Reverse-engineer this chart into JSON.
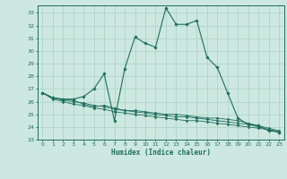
{
  "xlabel": "Humidex (Indice chaleur)",
  "bg_color": "#cde8e0",
  "grid_color": "#b0d4c8",
  "line_color": "#1e6e5e",
  "xlim": [
    -0.5,
    23.5
  ],
  "ylim": [
    23,
    33.6
  ],
  "yticks": [
    23,
    24,
    25,
    26,
    27,
    28,
    29,
    30,
    31,
    32,
    33
  ],
  "xticks": [
    0,
    1,
    2,
    3,
    4,
    5,
    6,
    7,
    8,
    9,
    10,
    11,
    12,
    13,
    14,
    15,
    16,
    17,
    18,
    19,
    20,
    21,
    22,
    23
  ],
  "line1_x": [
    0,
    1,
    2,
    3,
    4,
    5,
    6,
    7,
    8,
    9,
    10,
    11,
    12,
    13,
    14,
    15,
    16,
    17,
    18,
    19,
    20,
    21,
    22,
    23
  ],
  "line1_y": [
    26.7,
    26.3,
    26.2,
    26.2,
    26.4,
    27.0,
    28.2,
    24.5,
    28.6,
    31.1,
    30.6,
    30.3,
    33.4,
    32.1,
    32.1,
    32.4,
    29.5,
    28.7,
    26.7,
    24.7,
    24.2,
    24.1,
    23.7,
    23.6
  ],
  "line2_x": [
    0,
    1,
    2,
    3,
    4,
    5,
    6,
    7,
    8,
    9,
    10,
    11,
    12,
    13,
    14,
    15,
    16,
    17,
    18,
    19,
    20,
    21,
    22,
    23
  ],
  "line2_y": [
    26.7,
    26.3,
    26.2,
    26.1,
    25.8,
    25.6,
    25.7,
    25.5,
    25.3,
    25.3,
    25.2,
    25.1,
    25.0,
    25.0,
    24.9,
    24.8,
    24.7,
    24.7,
    24.6,
    24.5,
    24.3,
    24.1,
    23.9,
    23.7
  ],
  "line3_x": [
    0,
    1,
    2,
    3,
    4,
    5,
    6,
    7,
    8,
    9,
    10,
    11,
    12,
    13,
    14,
    15,
    16,
    17,
    18,
    19,
    20,
    21,
    22,
    23
  ],
  "line3_y": [
    26.7,
    26.3,
    26.1,
    26.0,
    25.9,
    25.7,
    25.6,
    25.4,
    25.3,
    25.2,
    25.1,
    25.0,
    24.9,
    24.8,
    24.8,
    24.7,
    24.6,
    24.5,
    24.4,
    24.3,
    24.2,
    24.0,
    23.8,
    23.6
  ],
  "line4_x": [
    0,
    1,
    2,
    3,
    4,
    5,
    6,
    7,
    8,
    9,
    10,
    11,
    12,
    13,
    14,
    15,
    16,
    17,
    18,
    19,
    20,
    21,
    22,
    23
  ],
  "line4_y": [
    26.7,
    26.2,
    26.0,
    25.8,
    25.7,
    25.5,
    25.4,
    25.2,
    25.1,
    25.0,
    24.9,
    24.8,
    24.7,
    24.6,
    24.5,
    24.5,
    24.4,
    24.3,
    24.2,
    24.1,
    24.0,
    23.9,
    23.8,
    23.6
  ]
}
